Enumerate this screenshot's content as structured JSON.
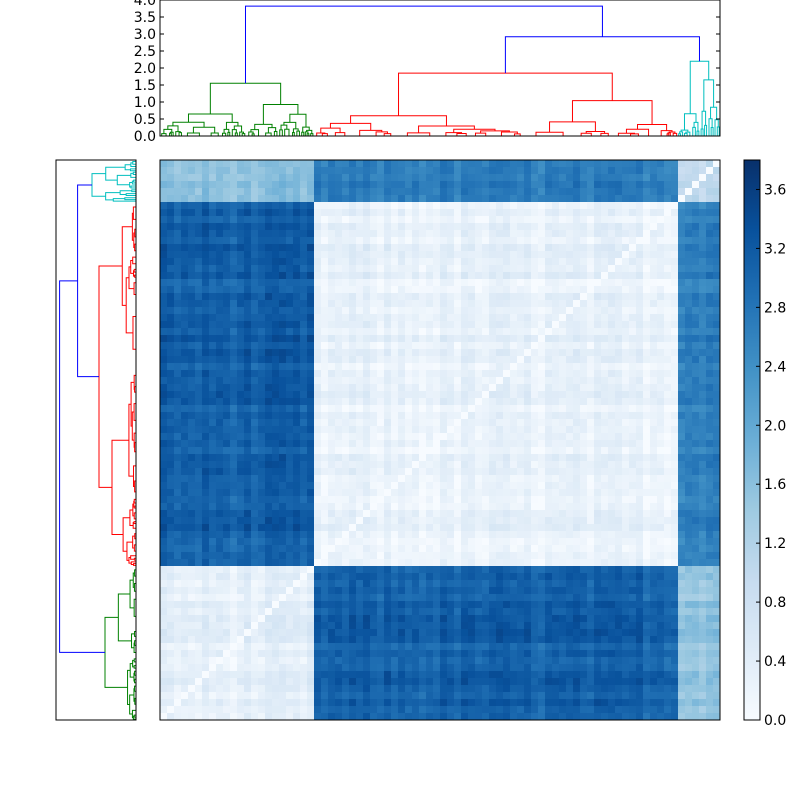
{
  "chart_data": [
    {
      "type": "dendrogram",
      "orientation": "top",
      "yticks": [
        "0.0",
        "0.5",
        "1.0",
        "1.5",
        "2.0",
        "2.5",
        "3.0",
        "3.5",
        "4.0"
      ],
      "ylim": [
        0,
        4.0
      ],
      "xlim": [
        0,
        100
      ],
      "root_height": 3.82,
      "clusters": [
        {
          "label": "green",
          "color": "#008000",
          "span": [
            0,
            27.5
          ],
          "merge_height": 1.55
        },
        {
          "label": "red",
          "color": "#ff0000",
          "span": [
            27.5,
            92.5
          ],
          "merge_height": 1.85
        },
        {
          "label": "cyan",
          "color": "#00bfbf",
          "span": [
            92.5,
            100
          ],
          "merge_height": 2.2
        }
      ],
      "upper_links_color": "#0000ff",
      "upper_links": [
        {
          "left": 77.5,
          "right": 94,
          "height": 2.92
        },
        {
          "left": 7.5,
          "right": 83,
          "height": 3.82
        }
      ]
    },
    {
      "type": "dendrogram",
      "orientation": "left",
      "note_hidden_axis": true,
      "root_height": 3.82,
      "clusters": [
        {
          "label": "cyan",
          "color": "#00bfbf",
          "span": [
            0,
            7.5
          ],
          "merge_height": 2.2
        },
        {
          "label": "red",
          "color": "#ff0000",
          "span": [
            7.5,
            72.5
          ],
          "merge_height": 1.85
        },
        {
          "label": "green",
          "color": "#008000",
          "span": [
            72.5,
            100
          ],
          "merge_height": 1.55
        }
      ]
    },
    {
      "type": "heatmap",
      "colormap": "Blues",
      "vmin": 0.0,
      "vmax": 3.8,
      "colorbar_ticks": [
        "0.0",
        "0.4",
        "0.8",
        "1.2",
        "1.6",
        "2.0",
        "2.4",
        "2.8",
        "3.2",
        "3.6"
      ],
      "order_x": [
        "green",
        "red",
        "cyan"
      ],
      "order_y": [
        "cyan",
        "red",
        "green"
      ],
      "block_fraction": {
        "green": 0.275,
        "red": 0.65,
        "cyan": 0.075
      },
      "block_values": {
        "green-green": 0.35,
        "green-red": 3.1,
        "green-cyan": 1.6,
        "red-red": 0.25,
        "red-cyan": 2.7,
        "cyan-cyan": 1.1
      }
    }
  ]
}
